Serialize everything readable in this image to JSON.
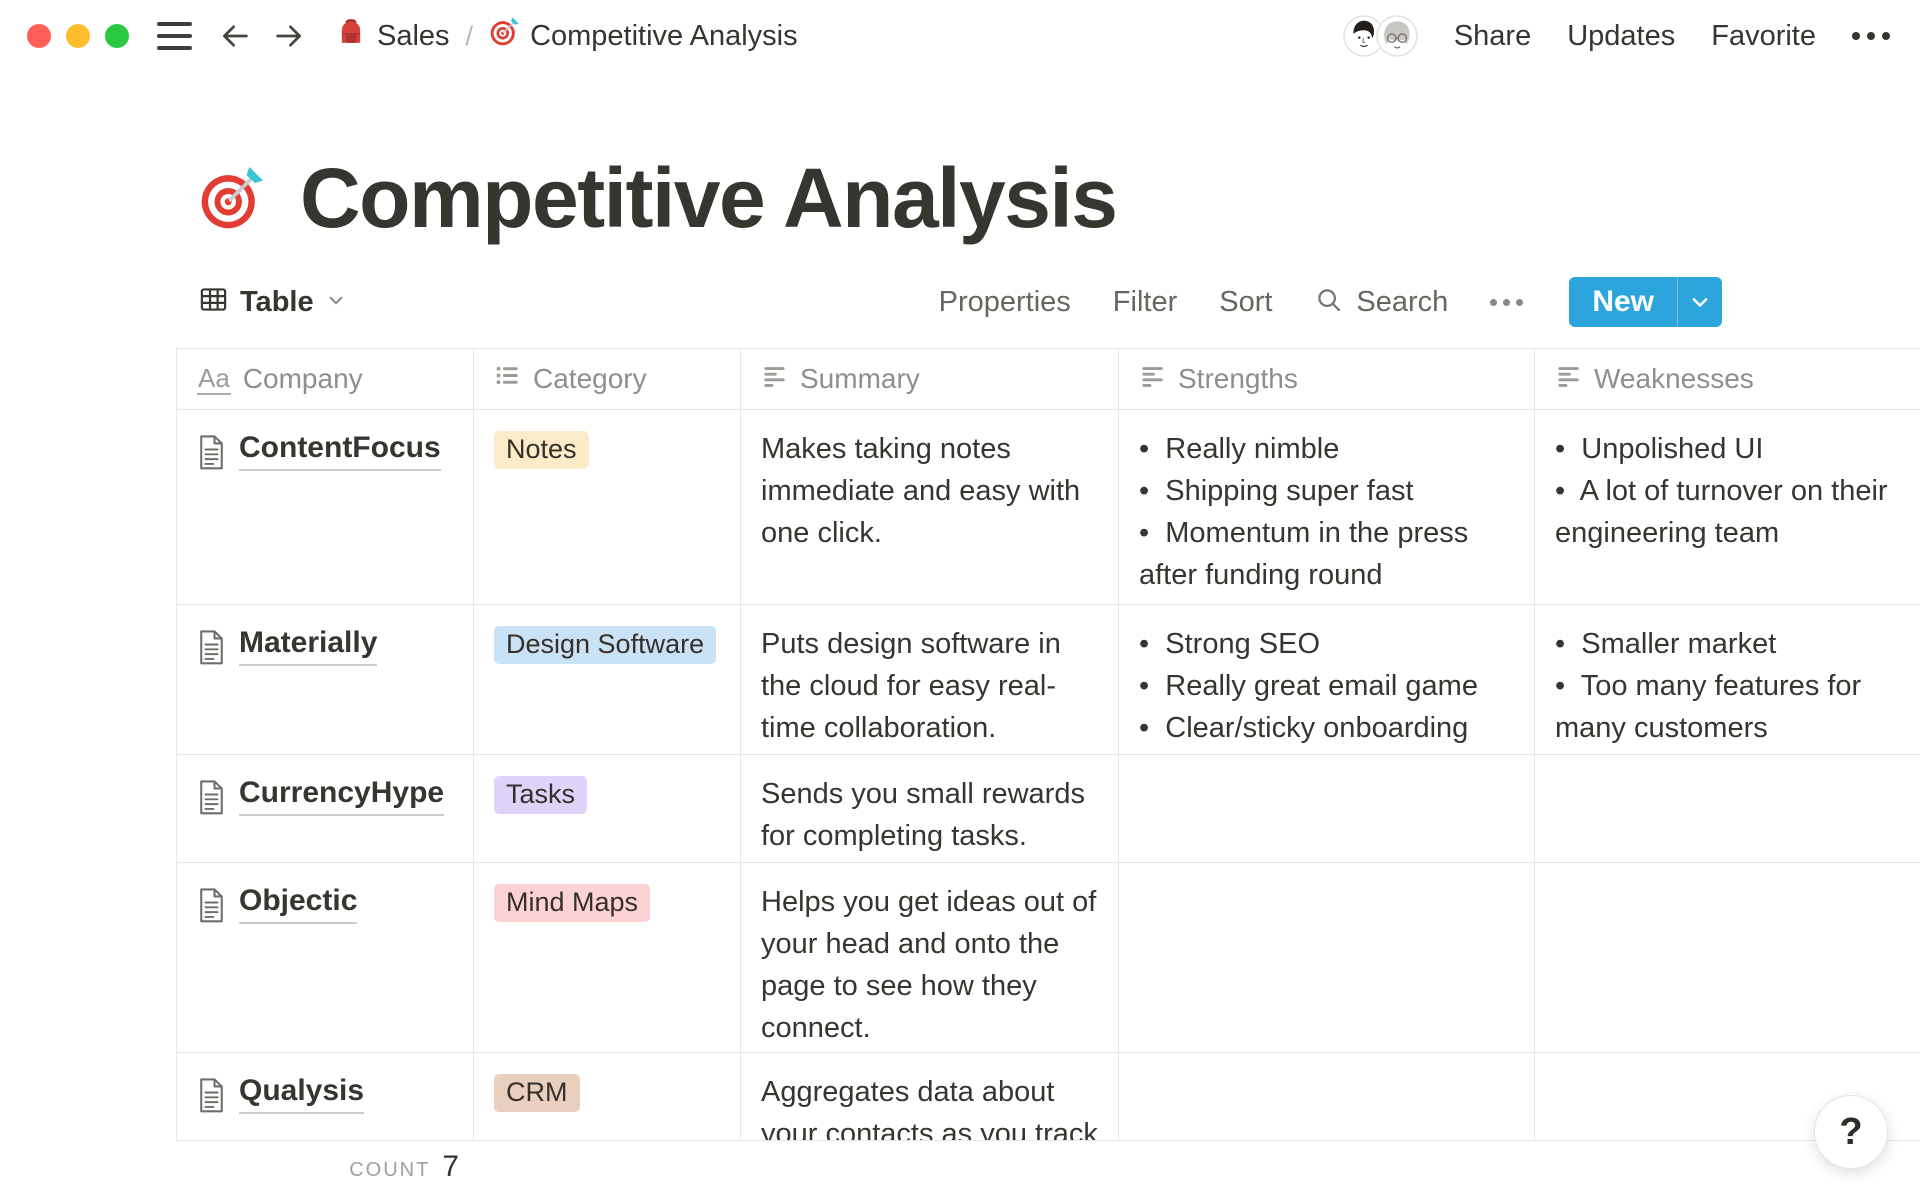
{
  "colors": {
    "accent_blue": "#2BA5DB",
    "traffic": [
      "#FF5F57",
      "#FEBC2E",
      "#28C840"
    ],
    "border": "#E8E7E4"
  },
  "topbar": {
    "breadcrumb": [
      {
        "icon": "backpack",
        "label": "Sales"
      },
      {
        "icon": "target",
        "label": "Competitive Analysis"
      }
    ],
    "separator": "/",
    "actions": [
      "Share",
      "Updates",
      "Favorite"
    ]
  },
  "page": {
    "icon": "target-dart",
    "title": "Competitive Analysis"
  },
  "toolbar": {
    "view_label": "Table",
    "links": [
      "Properties",
      "Filter",
      "Sort"
    ],
    "search_label": "Search",
    "new_label": "New"
  },
  "table": {
    "columns": [
      {
        "icon": "title-aa",
        "label": "Company"
      },
      {
        "icon": "bulleted-list",
        "label": "Category"
      },
      {
        "icon": "text-lines",
        "label": "Summary"
      },
      {
        "icon": "text-lines",
        "label": "Strengths"
      },
      {
        "icon": "text-lines",
        "label": "Weaknesses"
      }
    ],
    "rows": [
      {
        "company": "ContentFocus",
        "category": {
          "label": "Notes",
          "bg": "#FBEBC9"
        },
        "summary_lines": [
          "Makes taking notes",
          "immediate and easy with",
          "one click."
        ],
        "strengths": [
          [
            "Really nimble"
          ],
          [
            "Shipping super fast"
          ],
          [
            "Momentum in the press",
            "after funding round"
          ]
        ],
        "weaknesses": [
          [
            "Unpolished UI"
          ],
          [
            "A lot of turnover on their",
            "engineering team"
          ]
        ]
      },
      {
        "company": "Materially",
        "category": {
          "label": "Design Software",
          "bg": "#C9E2F6"
        },
        "summary_lines": [
          "Puts design software in",
          "the cloud for easy real-",
          "time collaboration."
        ],
        "strengths": [
          [
            "Strong SEO"
          ],
          [
            "Really great email game"
          ],
          [
            "Clear/sticky onboarding"
          ]
        ],
        "weaknesses": [
          [
            "Smaller market"
          ],
          [
            "Too many features for",
            "many customers"
          ]
        ]
      },
      {
        "company": "CurrencyHype",
        "category": {
          "label": "Tasks",
          "bg": "#DFD3F9"
        },
        "summary_lines": [
          "Sends you small rewards",
          "for completing tasks."
        ],
        "strengths": [],
        "weaknesses": []
      },
      {
        "company": "Objectic",
        "category": {
          "label": "Mind Maps",
          "bg": "#FDD2D4"
        },
        "summary_lines": [
          "Helps you get ideas out of",
          "your head and onto the",
          "page to see how they",
          "connect."
        ],
        "strengths": [],
        "weaknesses": []
      },
      {
        "company": "Qualysis",
        "category": {
          "label": "CRM",
          "bg": "#E8CFBE"
        },
        "summary_lines": [
          "Aggregates data about",
          "your contacts as you track"
        ],
        "strengths": [],
        "weaknesses": []
      }
    ],
    "footer": {
      "calc_label": "COUNT",
      "calc_value": "7"
    }
  },
  "help_label": "?"
}
